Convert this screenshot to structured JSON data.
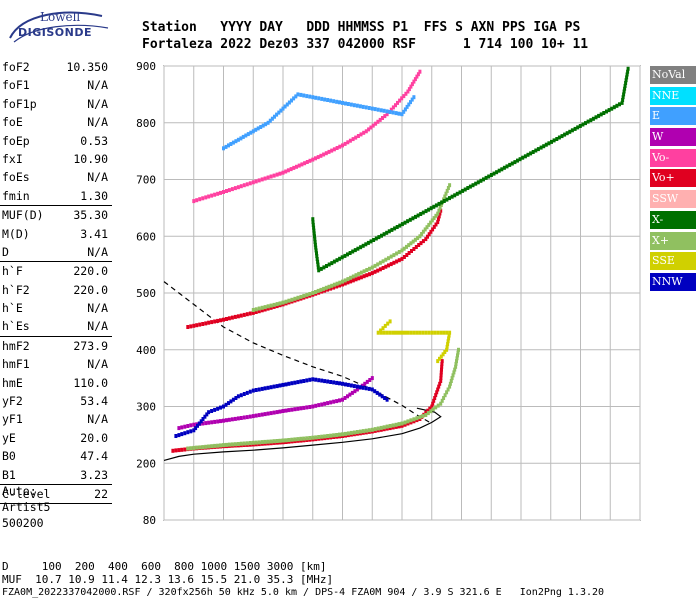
{
  "logo": {
    "line1": "Lowell",
    "line2": "DIGISONDE"
  },
  "header": {
    "line1": "Station   YYYY DAY   DDD HHMMSS P1  FFS S AXN PPS IGA PS",
    "line2": "Fortaleza 2022 Dez03 337 042000 RSF      1 714 100 10+ 11"
  },
  "params": {
    "group1": [
      {
        "k": "foF2",
        "v": "10.350"
      },
      {
        "k": "foF1",
        "v": "N/A"
      },
      {
        "k": "foF1p",
        "v": "N/A"
      },
      {
        "k": "foE",
        "v": "N/A"
      },
      {
        "k": "foEp",
        "v": "0.53"
      },
      {
        "k": "fxI",
        "v": "10.90"
      },
      {
        "k": "foEs",
        "v": "N/A"
      },
      {
        "k": "fmin",
        "v": "1.30"
      }
    ],
    "group2": [
      {
        "k": "MUF(D)",
        "v": "35.30"
      },
      {
        "k": "M(D)",
        "v": "3.41"
      },
      {
        "k": "D",
        "v": "N/A"
      }
    ],
    "group3": [
      {
        "k": "h`F",
        "v": "220.0"
      },
      {
        "k": "h`F2",
        "v": "220.0"
      },
      {
        "k": "h`E",
        "v": "N/A"
      },
      {
        "k": "h`Es",
        "v": "N/A"
      }
    ],
    "group4": [
      {
        "k": "hmF2",
        "v": "273.9"
      },
      {
        "k": "hmF1",
        "v": "N/A"
      },
      {
        "k": "hmE",
        "v": "110.0"
      },
      {
        "k": "yF2",
        "v": "53.4"
      },
      {
        "k": "yF1",
        "v": "N/A"
      },
      {
        "k": "yE",
        "v": "20.0"
      },
      {
        "k": "B0",
        "v": "47.4"
      },
      {
        "k": "B1",
        "v": "3.23"
      }
    ],
    "group5": [
      {
        "k": "C-level",
        "v": "22"
      }
    ]
  },
  "misc": {
    "auto": "Auto:",
    "artist": "Artist5",
    "code": "500200"
  },
  "footer": {
    "d_line": "D     100  200  400  600  800 1000 1500 3000 [km]",
    "muf_line": "MUF  10.7 10.9 11.4 12.3 13.6 15.5 21.0 35.3 [MHz]",
    "file_line": "FZA0M_2022337042000.RSF / 320fx256h 50 kHz 5.0 km / DPS-4 FZA0M 904 / 3.9 S 321.6 E   Ion2Png 1.3.20"
  },
  "legend": [
    {
      "label": "NoVal",
      "bg": "#808080",
      "fg": "#ffffff"
    },
    {
      "label": "NNE",
      "bg": "#00e0ff",
      "fg": "#ffffff"
    },
    {
      "label": "E",
      "bg": "#40a0ff",
      "fg": "#ffffff"
    },
    {
      "label": "W",
      "bg": "#b000b0",
      "fg": "#ffffff"
    },
    {
      "label": "Vo-",
      "bg": "#ff40a0",
      "fg": "#ffffff"
    },
    {
      "label": "Vo+",
      "bg": "#e00020",
      "fg": "#ffffff"
    },
    {
      "label": "SSW",
      "bg": "#ffb0b0",
      "fg": "#ffffff"
    },
    {
      "label": "X-",
      "bg": "#007000",
      "fg": "#ffffff"
    },
    {
      "label": "X+",
      "bg": "#90c060",
      "fg": "#ffffff"
    },
    {
      "label": "SSE",
      "bg": "#d0d000",
      "fg": "#ffffff"
    },
    {
      "label": "NNW",
      "bg": "#0000c0",
      "fg": "#ffffff"
    }
  ],
  "chart_data": {
    "type": "scatter",
    "x_ticks": [
      "1",
      "2",
      "3",
      "4",
      "5",
      "6",
      "7",
      "8",
      "9",
      "10",
      "11",
      "12",
      "13",
      "14",
      "15",
      "16",
      "17"
    ],
    "y_ticks": [
      "900",
      "800",
      "700",
      "600",
      "500",
      "400",
      "300",
      "200",
      "80"
    ],
    "xlim": [
      1,
      17
    ],
    "y_tick_values": [
      900,
      800,
      700,
      600,
      500,
      400,
      300,
      200,
      80
    ],
    "grid": true,
    "series": [
      {
        "name": "Vo+",
        "color": "#e00020",
        "points": [
          [
            1.3,
            222
          ],
          [
            2,
            226
          ],
          [
            3,
            230
          ],
          [
            4,
            233
          ],
          [
            5,
            237
          ],
          [
            6,
            242
          ],
          [
            7,
            248
          ],
          [
            8,
            256
          ],
          [
            9,
            266
          ],
          [
            9.6,
            278
          ],
          [
            10,
            300
          ],
          [
            10.3,
            345
          ],
          [
            10.35,
            380
          ]
        ]
      },
      {
        "name": "X+",
        "color": "#90c060",
        "points": [
          [
            1.8,
            226
          ],
          [
            3,
            232
          ],
          [
            4,
            236
          ],
          [
            5,
            240
          ],
          [
            6,
            245
          ],
          [
            7,
            251
          ],
          [
            8,
            259
          ],
          [
            9,
            270
          ],
          [
            9.8,
            285
          ],
          [
            10.3,
            305
          ],
          [
            10.6,
            335
          ],
          [
            10.8,
            370
          ],
          [
            10.9,
            400
          ]
        ]
      },
      {
        "name": "Vo+",
        "color": "#e00020",
        "points": [
          [
            1.8,
            440
          ],
          [
            3,
            453
          ],
          [
            4,
            465
          ],
          [
            5,
            480
          ],
          [
            6,
            497
          ],
          [
            7,
            515
          ],
          [
            8,
            535
          ],
          [
            9,
            560
          ],
          [
            9.8,
            595
          ],
          [
            10.2,
            625
          ],
          [
            10.3,
            645
          ]
        ]
      },
      {
        "name": "X+",
        "color": "#90c060",
        "points": [
          [
            4,
            470
          ],
          [
            5,
            483
          ],
          [
            6,
            500
          ],
          [
            7,
            520
          ],
          [
            8,
            545
          ],
          [
            9,
            575
          ],
          [
            9.6,
            600
          ],
          [
            10.2,
            640
          ],
          [
            10.6,
            690
          ]
        ]
      },
      {
        "name": "Vo-",
        "color": "#ff40a0",
        "points": [
          [
            2,
            662
          ],
          [
            3,
            678
          ],
          [
            4,
            695
          ],
          [
            5,
            712
          ],
          [
            6,
            735
          ],
          [
            7,
            760
          ],
          [
            7.8,
            785
          ],
          [
            8.5,
            815
          ],
          [
            9.2,
            855
          ],
          [
            9.6,
            890
          ]
        ]
      },
      {
        "name": "W",
        "color": "#b000b0",
        "points": [
          [
            1.5,
            262
          ],
          [
            2,
            268
          ],
          [
            3,
            275
          ],
          [
            4,
            283
          ],
          [
            5,
            292
          ],
          [
            6,
            300
          ],
          [
            7,
            312
          ],
          [
            7.5,
            330
          ],
          [
            8,
            350
          ]
        ]
      },
      {
        "name": "NNW",
        "color": "#0000c0",
        "points": [
          [
            1.4,
            248
          ],
          [
            2,
            258
          ],
          [
            2.5,
            290
          ],
          [
            3,
            300
          ],
          [
            3.5,
            318
          ],
          [
            4,
            328
          ],
          [
            5,
            338
          ],
          [
            6,
            348
          ],
          [
            7,
            340
          ],
          [
            8,
            330
          ],
          [
            8.5,
            312
          ]
        ]
      },
      {
        "name": "E",
        "color": "#40a0ff",
        "points": [
          [
            3,
            755
          ],
          [
            3.5,
            770
          ],
          [
            4,
            785
          ],
          [
            4.5,
            800
          ],
          [
            5.5,
            850
          ],
          [
            9,
            815
          ],
          [
            9.4,
            845
          ]
        ]
      },
      {
        "name": "SSE",
        "color": "#d0d000",
        "points": [
          [
            10.2,
            380
          ],
          [
            10.5,
            400
          ],
          [
            10.6,
            430
          ],
          [
            8.2,
            430
          ],
          [
            8.6,
            450
          ]
        ]
      },
      {
        "name": "X-",
        "color": "#007000",
        "points": [
          [
            6,
            630
          ],
          [
            6.1,
            580
          ],
          [
            6.2,
            540
          ],
          [
            16.4,
            835
          ],
          [
            16.6,
            895
          ]
        ]
      }
    ],
    "lines": [
      {
        "style": "solid",
        "points": [
          [
            1,
            205
          ],
          [
            1.5,
            212
          ],
          [
            2,
            216
          ],
          [
            3,
            220
          ],
          [
            4,
            223
          ],
          [
            5,
            227
          ],
          [
            6,
            232
          ],
          [
            7,
            237
          ],
          [
            8,
            243
          ],
          [
            9,
            252
          ],
          [
            9.6,
            262
          ],
          [
            10,
            272
          ],
          [
            10.3,
            282
          ],
          [
            10.1,
            290
          ],
          [
            9.5,
            297
          ]
        ]
      },
      {
        "style": "dashed",
        "points": [
          [
            1,
            520
          ],
          [
            1.5,
            500
          ],
          [
            2,
            480
          ],
          [
            2.5,
            460
          ],
          [
            3,
            440
          ],
          [
            4,
            412
          ],
          [
            5,
            390
          ],
          [
            6,
            370
          ],
          [
            7,
            353
          ],
          [
            8,
            330
          ],
          [
            9,
            302
          ],
          [
            9.5,
            285
          ],
          [
            10,
            270
          ]
        ]
      }
    ]
  }
}
